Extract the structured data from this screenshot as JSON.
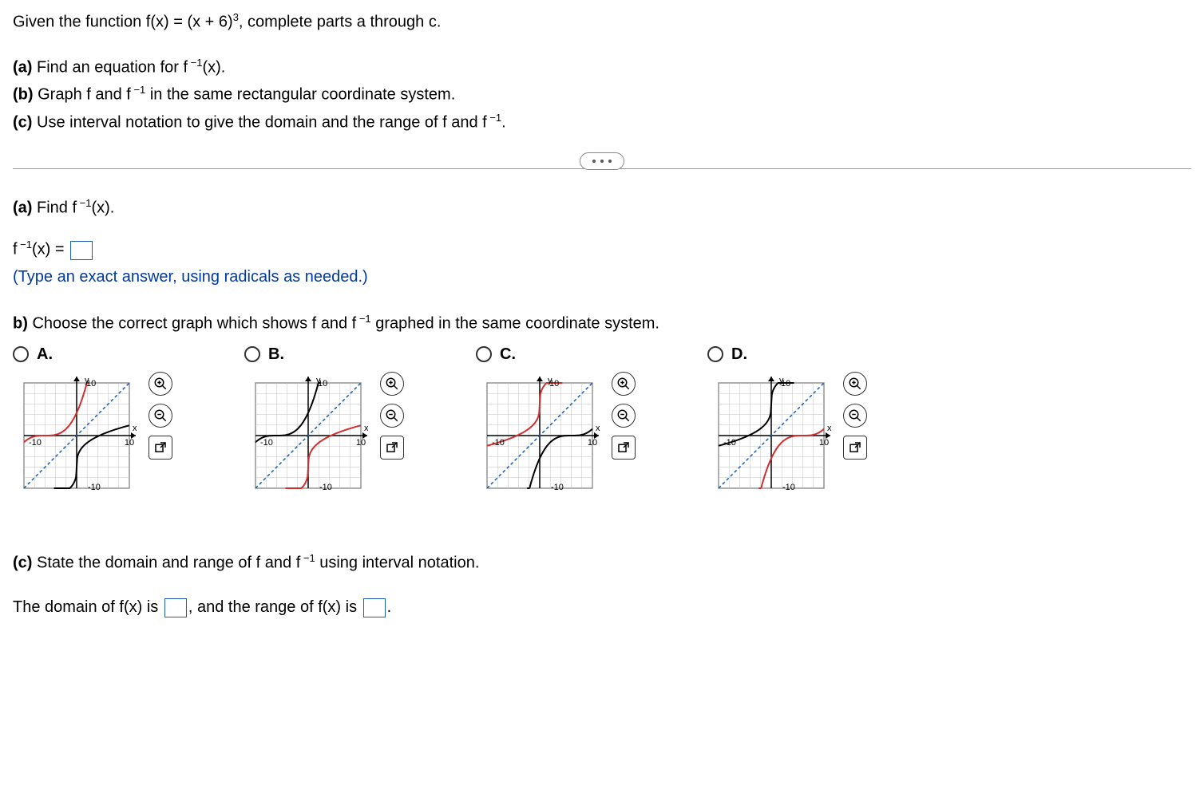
{
  "intro": "Given the function f(x) = (x + 6)³, complete parts a through c.",
  "parts": {
    "a_label": "(a)",
    "a_text": "Find an equation for f⁻¹(x).",
    "b_label": "(b)",
    "b_text": "Graph f and f⁻¹ in the same rectangular coordinate system.",
    "c_label": "(c)",
    "c_text": "Use interval notation to give the domain and the range of f and f⁻¹."
  },
  "question_a": {
    "head": "(a) Find f⁻¹(x).",
    "eq_lhs": "f⁻¹(x) = ",
    "hint": "(Type an exact answer, using radicals as needed.)"
  },
  "question_b": {
    "text": "b) Choose the correct graph which shows f and f⁻¹ graphed in the same coordinate system."
  },
  "options": {
    "a": "A.",
    "b": "B.",
    "c": "C.",
    "d": "D."
  },
  "graph": {
    "xmin": -10,
    "xmax": 10,
    "ymin": -10,
    "ymax": 10,
    "xlabel": "x",
    "ylabel": "y",
    "grid_color": "#bfbfbf",
    "axis_color": "#000000",
    "identity_color": "#1a5fb4",
    "curve_color": "#d12f2f",
    "inverse_color": "#000000",
    "background": "#ffffff",
    "tick_label_10": "10",
    "tick_label_n10": "-10"
  },
  "question_c": {
    "head": "(c) State the domain and range of f and f⁻¹ using interval notation.",
    "line_pre": "The domain of f(x) is ",
    "line_mid": ", and the range of f(x) is ",
    "line_end": "."
  },
  "icons": {
    "zoom_in": "zoom-in-icon",
    "zoom_out": "zoom-out-icon",
    "popout": "popout-icon",
    "ellipsis": "…"
  }
}
